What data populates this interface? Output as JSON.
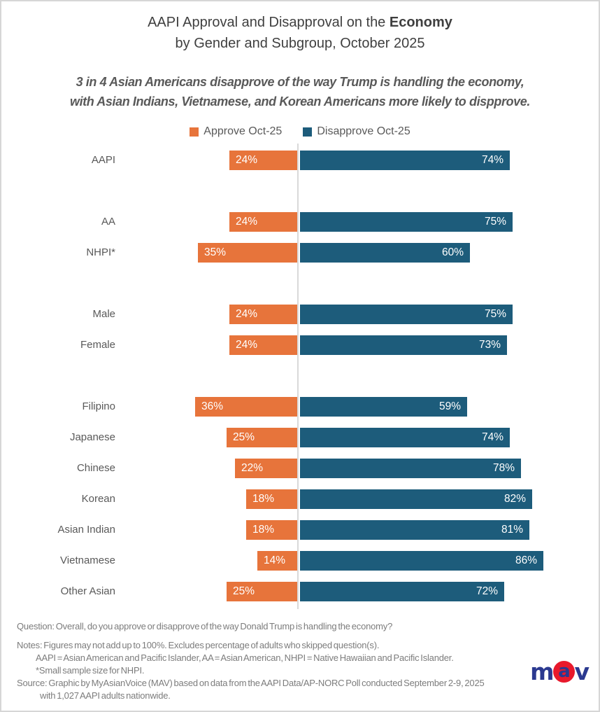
{
  "header": {
    "title_prefix": "AAPI Approval and Disapproval on the ",
    "title_bold": "Economy",
    "title_line2": "by Gender and Subgroup, October 2025"
  },
  "subtitle": {
    "line1": "3 in 4 Asian Americans disapprove of the way Trump is handling the economy,",
    "line2": "with Asian Indians, Vietnamese, and Korean Americans more likely to dispprove."
  },
  "legend": {
    "approve_label": "Approve Oct-25",
    "disapprove_label": "Disapprove Oct-25"
  },
  "colors": {
    "approve": "#e7743b",
    "disapprove": "#1d5c7b",
    "axis_line": "#d9d9d9",
    "logo_navy": "#2b3990",
    "logo_red": "#e8192c"
  },
  "chart_data": {
    "type": "bar",
    "subtype": "diverging-horizontal",
    "unit": "%",
    "axis": {
      "center_value": 0,
      "approve_direction": "left",
      "disapprove_direction": "right",
      "grid": "off",
      "legend_position": "top-center"
    },
    "series": [
      {
        "name": "Approve Oct-25",
        "color": "#e7743b"
      },
      {
        "name": "Disapprove Oct-25",
        "color": "#1d5c7b"
      }
    ],
    "rows": [
      {
        "label": "AAPI",
        "approve": 24,
        "disapprove": 74
      },
      {
        "label": "AA",
        "approve": 24,
        "disapprove": 75,
        "gap_before": true
      },
      {
        "label": "NHPI*",
        "approve": 35,
        "disapprove": 60
      },
      {
        "label": "Male",
        "approve": 24,
        "disapprove": 75,
        "gap_before": true
      },
      {
        "label": "Female",
        "approve": 24,
        "disapprove": 73
      },
      {
        "label": "Filipino",
        "approve": 36,
        "disapprove": 59,
        "gap_before": true
      },
      {
        "label": "Japanese",
        "approve": 25,
        "disapprove": 74
      },
      {
        "label": "Chinese",
        "approve": 22,
        "disapprove": 78
      },
      {
        "label": "Korean",
        "approve": 18,
        "disapprove": 82
      },
      {
        "label": "Asian Indian",
        "approve": 18,
        "disapprove": 81
      },
      {
        "label": "Vietnamese",
        "approve": 14,
        "disapprove": 86
      },
      {
        "label": "Other Asian",
        "approve": 25,
        "disapprove": 72
      }
    ]
  },
  "footnotes": {
    "question": "Question: Overall, do you approve or disapprove of the way Donald Trump is handling the economy?",
    "notes_line1": "Notes: Figures may not add up to 100%. Excludes percentage of adults who skipped question(s).",
    "notes_line2": "AAPI = Asian American and Pacific Islander, AA = Asian American, NHPI = Native Hawaiian and Pacific Islander.",
    "notes_line3": "*Small sample size for NHPI.",
    "source_line1": "Source: Graphic by MyAsianVoice (MAV) based on data from the AAPI Data/AP-NORC Poll conducted September 2-9, 2025",
    "source_line2": "with 1,027 AAPI adults nationwide."
  },
  "logo": {
    "m": "m",
    "a": "a",
    "v": "v"
  }
}
